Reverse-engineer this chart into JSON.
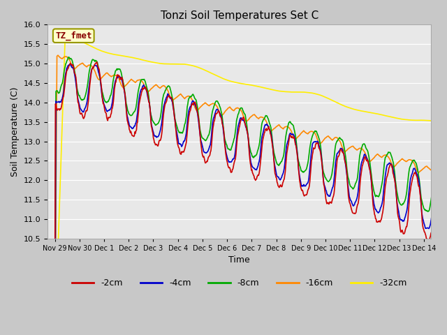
{
  "title": "Tonzi Soil Temperatures Set C",
  "xlabel": "Time",
  "ylabel": "Soil Temperature (C)",
  "ylim": [
    10.5,
    16.0
  ],
  "yticks": [
    10.5,
    11.0,
    11.5,
    12.0,
    12.5,
    13.0,
    13.5,
    14.0,
    14.5,
    15.0,
    15.5,
    16.0
  ],
  "fig_bg": "#c8c8c8",
  "plot_bg": "#e8e8e8",
  "colors": {
    "-2cm": "#cc0000",
    "-4cm": "#0000cc",
    "-8cm": "#00aa00",
    "-16cm": "#ff8800",
    "-32cm": "#ffee00"
  },
  "annotation_text": "TZ_fmet",
  "annotation_bg": "#ffffcc",
  "annotation_border": "#999900",
  "annotation_text_color": "#880000",
  "tick_labels": [
    "Nov 29",
    "Nov 30",
    "Dec 1",
    "Dec 2",
    "Dec 3",
    "Dec 4",
    "Dec 5",
    "Dec 6",
    "Dec 7",
    "Dec 8",
    "Dec 9",
    "Dec 10",
    "Dec 11",
    "Dec 12",
    "Dec 13",
    "Dec 14"
  ]
}
